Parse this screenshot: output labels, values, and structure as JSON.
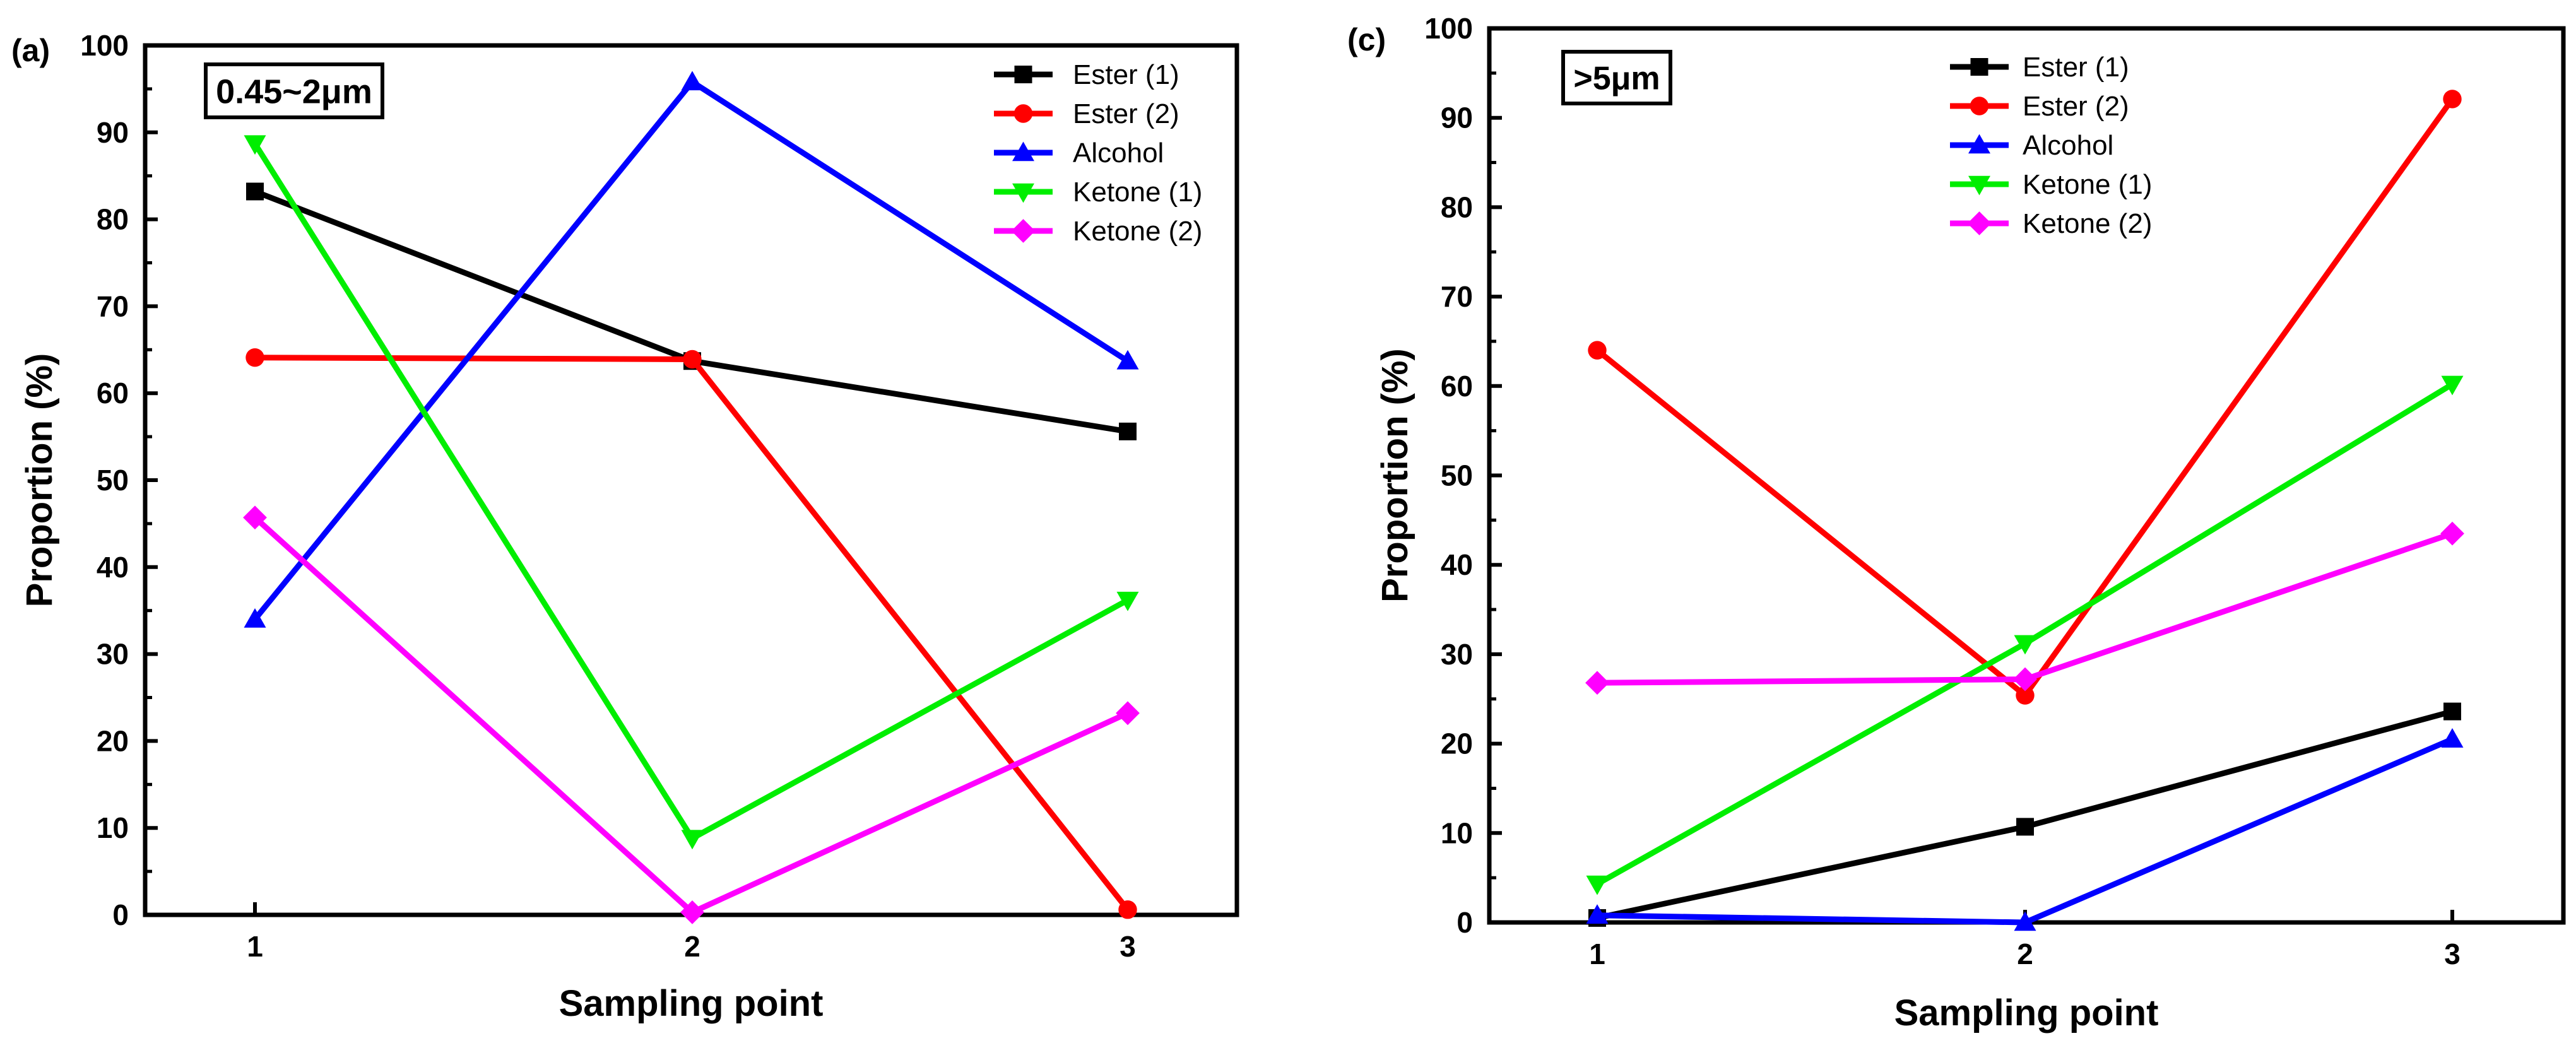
{
  "chart_data": [
    {
      "panel_label": "(a)",
      "annotation": "0.45~2μm",
      "type": "line",
      "xlabel": "Sampling point",
      "ylabel": "Proportion (%)",
      "x": [
        1,
        2,
        3
      ],
      "xticks": [
        "1",
        "2",
        "3"
      ],
      "ylim": [
        0,
        100
      ],
      "yticks": [
        "0",
        "10",
        "20",
        "30",
        "40",
        "50",
        "60",
        "70",
        "80",
        "90",
        "100"
      ],
      "legend_position": "top-right",
      "series": [
        {
          "name": "Ester (1)",
          "color": "#000000",
          "marker": "square",
          "values": [
            83.2,
            63.7,
            55.6
          ]
        },
        {
          "name": "Ester (2)",
          "color": "#ff0000",
          "marker": "circle",
          "values": [
            64.1,
            63.9,
            0.6
          ]
        },
        {
          "name": "Alcohol",
          "color": "#0000ff",
          "marker": "triangle-up",
          "values": [
            34.0,
            95.8,
            63.7
          ]
        },
        {
          "name": "Ketone (1)",
          "color": "#00ee00",
          "marker": "triangle-down",
          "values": [
            88.7,
            8.8,
            36.2
          ]
        },
        {
          "name": "Ketone (2)",
          "color": "#ff00ff",
          "marker": "diamond",
          "values": [
            45.7,
            0.3,
            23.2
          ]
        }
      ]
    },
    {
      "panel_label": "(c)",
      "annotation": ">5μm",
      "type": "line",
      "xlabel": "Sampling point",
      "ylabel": "Proportion (%)",
      "x": [
        1,
        2,
        3
      ],
      "xticks": [
        "1",
        "2",
        "3"
      ],
      "ylim": [
        0,
        100
      ],
      "yticks": [
        "0",
        "10",
        "20",
        "30",
        "40",
        "50",
        "60",
        "70",
        "80",
        "90",
        "100"
      ],
      "legend_position": "top-center",
      "series": [
        {
          "name": "Ester (1)",
          "color": "#000000",
          "marker": "square",
          "values": [
            0.5,
            10.7,
            23.6
          ]
        },
        {
          "name": "Ester (2)",
          "color": "#ff0000",
          "marker": "circle",
          "values": [
            64.0,
            25.4,
            92.1
          ]
        },
        {
          "name": "Alcohol",
          "color": "#0000ff",
          "marker": "triangle-up",
          "values": [
            0.8,
            0.0,
            20.5
          ]
        },
        {
          "name": "Ketone (1)",
          "color": "#00ee00",
          "marker": "triangle-down",
          "values": [
            4.3,
            31.2,
            60.2
          ]
        },
        {
          "name": "Ketone (2)",
          "color": "#ff00ff",
          "marker": "diamond",
          "values": [
            26.8,
            27.2,
            43.5
          ]
        }
      ]
    }
  ]
}
